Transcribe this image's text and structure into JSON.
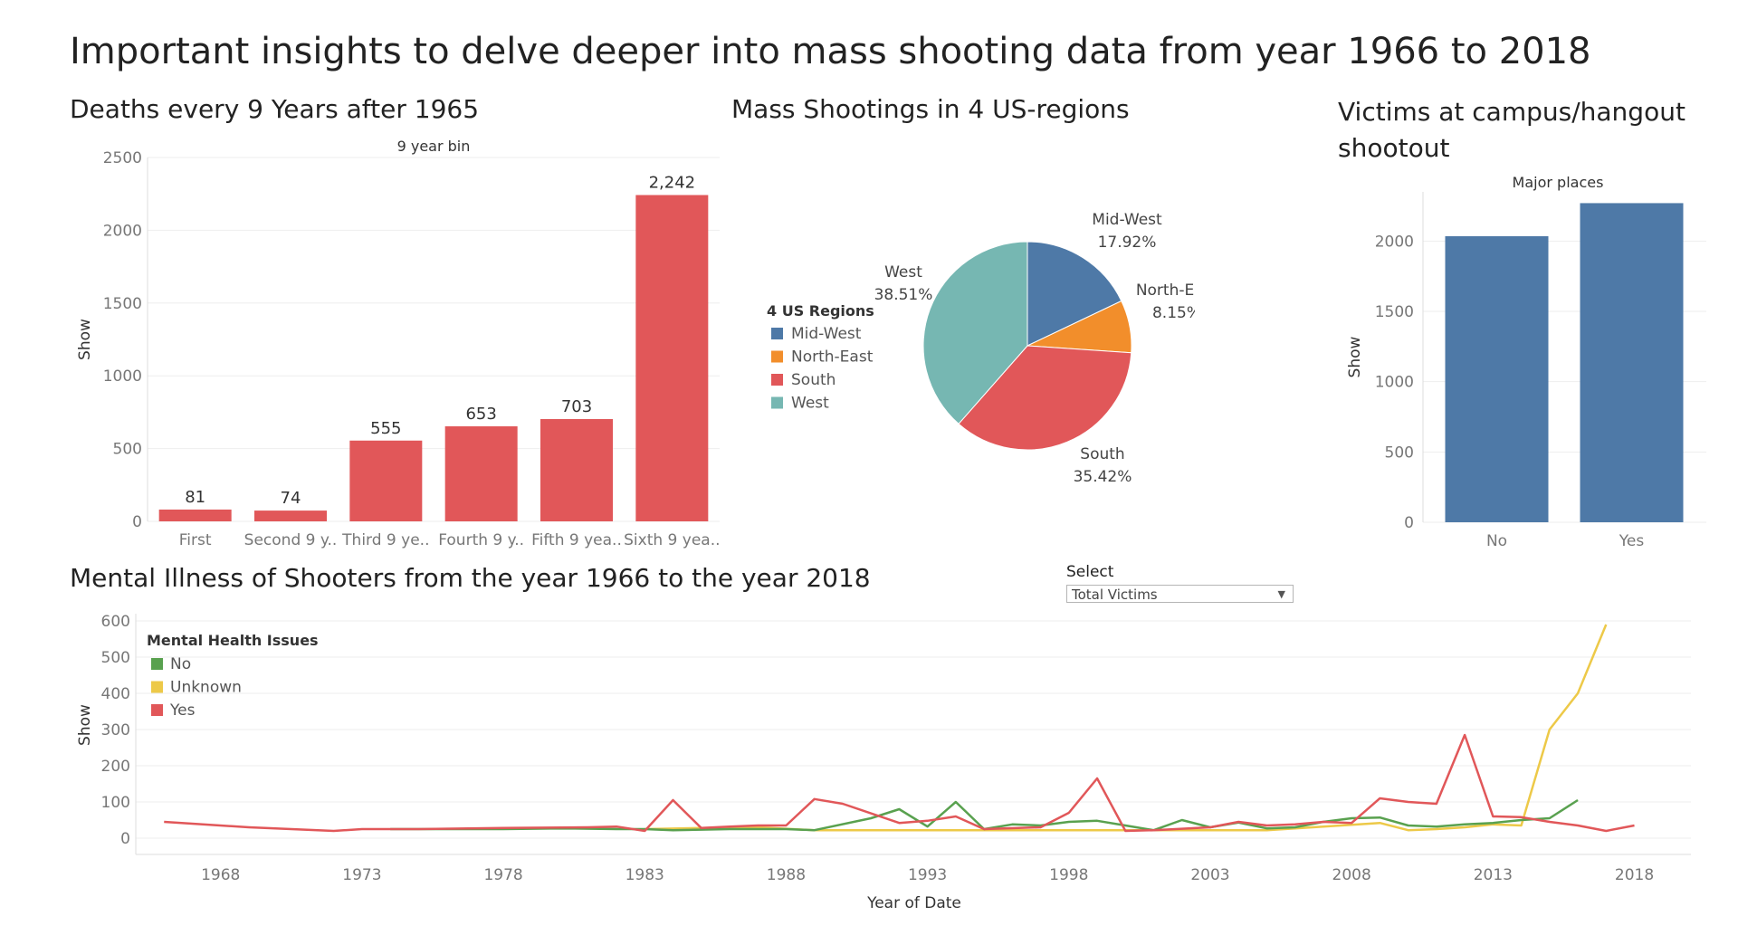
{
  "dashboard": {
    "title": "Important insights to delve deeper into mass shooting data from year 1966 to 2018"
  },
  "select": {
    "label": "Select",
    "value": "Total Victims"
  },
  "chart_data": [
    {
      "id": "deaths",
      "type": "bar",
      "title": "Deaths every 9 Years after 1965",
      "subtitle": "9 year bin",
      "ylabel": "Show",
      "ylim": [
        0,
        2500
      ],
      "yticks": [
        0,
        500,
        1000,
        1500,
        2000,
        2500
      ],
      "categories": [
        "First",
        "Second 9 y..",
        "Third 9 ye..",
        "Fourth 9 y..",
        "Fifth 9 yea..",
        "Sixth 9 yea.."
      ],
      "values": [
        81,
        74,
        555,
        653,
        703,
        2242
      ],
      "value_labels": [
        "81",
        "74",
        "555",
        "653",
        "703",
        "2,242"
      ],
      "color": "#e15759"
    },
    {
      "id": "regions",
      "type": "pie",
      "title": "Mass Shootings in 4 US-regions",
      "legend_title": "4 US Regions",
      "slices": [
        {
          "name": "Mid-West",
          "value": 17.92,
          "label": "17.92%",
          "color": "#4e79a7"
        },
        {
          "name": "North-East",
          "value": 8.15,
          "label": "8.15%",
          "color": "#f28e2b"
        },
        {
          "name": "South",
          "value": 35.42,
          "label": "35.42%",
          "color": "#e15759"
        },
        {
          "name": "West",
          "value": 38.51,
          "label": "38.51%",
          "color": "#76b7b2"
        }
      ]
    },
    {
      "id": "victims",
      "type": "bar",
      "title": "Victims at campus/hangout shootout",
      "subtitle": "Major places",
      "ylabel": "Show",
      "ylim": [
        0,
        2350
      ],
      "yticks": [
        0,
        500,
        1000,
        1500,
        2000
      ],
      "categories": [
        "No",
        "Yes"
      ],
      "values": [
        2035,
        2270
      ],
      "color": "#4e79a7"
    },
    {
      "id": "mental",
      "type": "line",
      "title": "Mental Illness of Shooters from the year 1966 to the year 2018",
      "xlabel": "Year of Date",
      "ylabel": "Show",
      "ylim": [
        0,
        600
      ],
      "xlim": [
        1965,
        2020
      ],
      "yticks": [
        0,
        100,
        200,
        300,
        400,
        500,
        600
      ],
      "xticks": [
        1968,
        1973,
        1978,
        1983,
        1988,
        1993,
        1998,
        2003,
        2008,
        2013,
        2018
      ],
      "legend_title": "Mental Health Issues",
      "series": [
        {
          "name": "No",
          "color": "#59a14f",
          "x": [
            1974,
            1976,
            1978,
            1980,
            1982,
            1983,
            1984,
            1986,
            1988,
            1989,
            1991,
            1992,
            1993,
            1994,
            1995,
            1996,
            1997,
            1998,
            1999,
            2000,
            2001,
            2002,
            2003,
            2004,
            2005,
            2006,
            2007,
            2008,
            2009,
            2010,
            2011,
            2012,
            2013,
            2014,
            2015,
            2016
          ],
          "y": [
            25,
            25,
            25,
            27,
            25,
            25,
            22,
            25,
            25,
            22,
            55,
            80,
            32,
            100,
            25,
            38,
            35,
            45,
            48,
            35,
            22,
            50,
            30,
            43,
            27,
            30,
            45,
            55,
            57,
            35,
            32,
            38,
            42,
            50,
            55,
            105
          ]
        },
        {
          "name": "Unknown",
          "color": "#edc948",
          "x": [
            1983,
            1985,
            1987,
            1989,
            1991,
            1993,
            1995,
            1997,
            1999,
            2001,
            2003,
            2005,
            2007,
            2009,
            2010,
            2011,
            2012,
            2013,
            2014,
            2015,
            2016,
            2017
          ],
          "y": [
            25,
            28,
            30,
            22,
            22,
            22,
            22,
            22,
            22,
            22,
            22,
            22,
            32,
            42,
            22,
            25,
            30,
            38,
            35,
            300,
            400,
            590
          ]
        },
        {
          "name": "Yes",
          "color": "#e15759",
          "x": [
            1966,
            1969,
            1972,
            1973,
            1975,
            1978,
            1981,
            1982,
            1983,
            1984,
            1985,
            1986,
            1987,
            1988,
            1989,
            1990,
            1992,
            1993,
            1994,
            1995,
            1997,
            1998,
            1999,
            2000,
            2001,
            2003,
            2004,
            2005,
            2006,
            2007,
            2008,
            2009,
            2010,
            2011,
            2012,
            2013,
            2014,
            2015,
            2016,
            2017,
            2018
          ],
          "y": [
            45,
            30,
            20,
            25,
            25,
            28,
            30,
            32,
            20,
            105,
            28,
            32,
            35,
            35,
            108,
            95,
            42,
            48,
            60,
            25,
            30,
            70,
            165,
            20,
            22,
            30,
            45,
            35,
            38,
            45,
            42,
            110,
            100,
            95,
            285,
            60,
            58,
            45,
            35,
            20,
            35
          ]
        }
      ]
    }
  ]
}
